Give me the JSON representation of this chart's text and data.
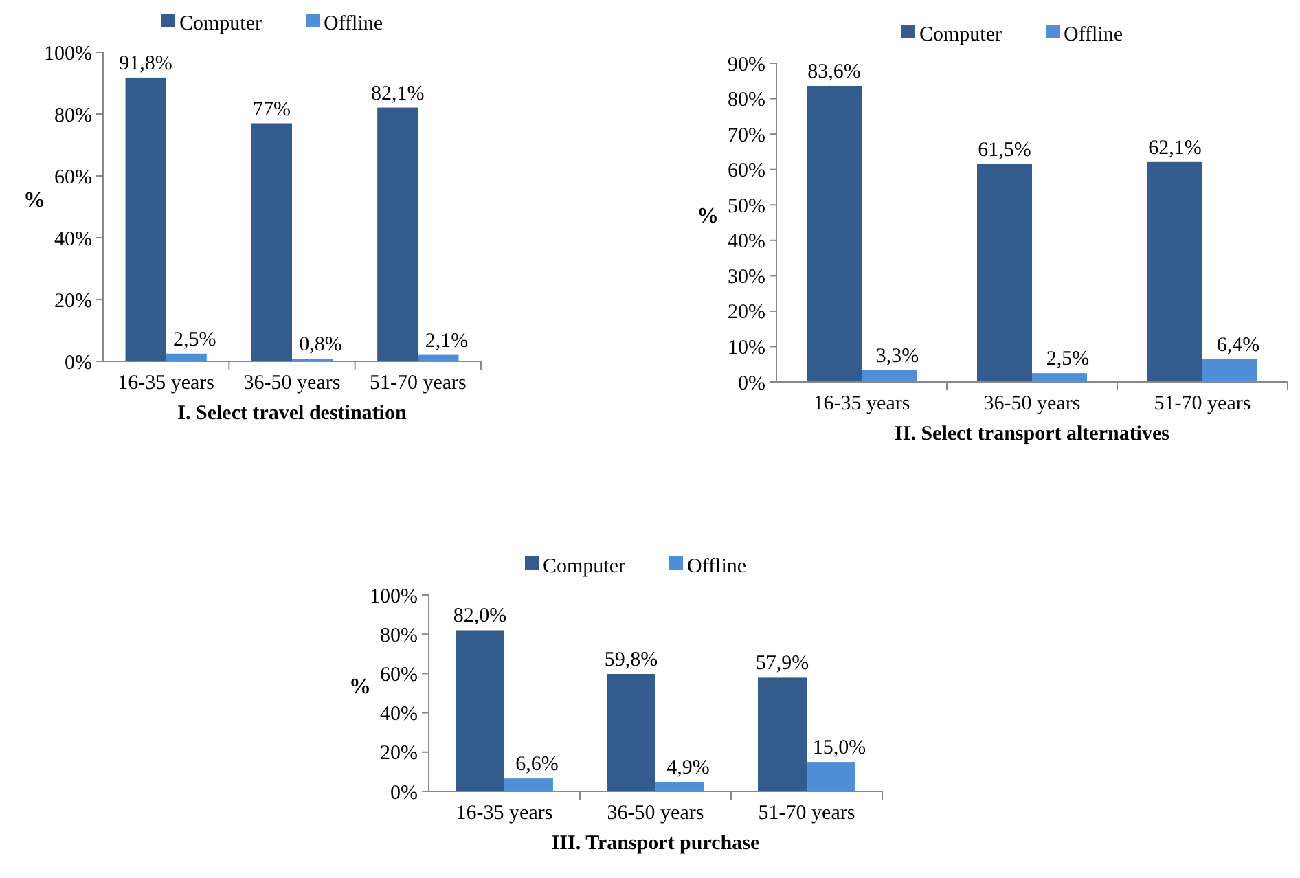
{
  "chart_data": [
    {
      "type": "bar",
      "title": "I. Select travel destination",
      "ylabel": "%",
      "categories": [
        "16-35 years",
        "36-50 years",
        "51-70 years"
      ],
      "ylim": [
        0,
        100
      ],
      "yticks": [
        {
          "value": 0,
          "label": "0%"
        },
        {
          "value": 20,
          "label": "20%"
        },
        {
          "value": 40,
          "label": "40%"
        },
        {
          "value": 60,
          "label": "60%"
        },
        {
          "value": 80,
          "label": "80%"
        },
        {
          "value": 100,
          "label": "100%"
        }
      ],
      "legend": "top",
      "series": [
        {
          "name": "Computer",
          "color": "#335b8e",
          "values": [
            91.8,
            77,
            82.1
          ],
          "value_labels": [
            "91,8%",
            "77%",
            "82,1%"
          ]
        },
        {
          "name": "Offline",
          "color": "#4f8fd8",
          "values": [
            2.5,
            0.8,
            2.1
          ],
          "value_labels": [
            "2,5%",
            "0,8%",
            "2,1%"
          ]
        }
      ]
    },
    {
      "type": "bar",
      "title": "II. Select transport alternatives",
      "ylabel": "%",
      "categories": [
        "16-35 years",
        "36-50 years",
        "51-70 years"
      ],
      "ylim": [
        0,
        90
      ],
      "yticks": [
        {
          "value": 0,
          "label": "0%"
        },
        {
          "value": 10,
          "label": "10%"
        },
        {
          "value": 20,
          "label": "20%"
        },
        {
          "value": 30,
          "label": "30%"
        },
        {
          "value": 40,
          "label": "40%"
        },
        {
          "value": 50,
          "label": "50%"
        },
        {
          "value": 60,
          "label": "60%"
        },
        {
          "value": 70,
          "label": "70%"
        },
        {
          "value": 80,
          "label": "80%"
        },
        {
          "value": 90,
          "label": "90%"
        }
      ],
      "legend": "top",
      "series": [
        {
          "name": "Computer",
          "color": "#335b8e",
          "values": [
            83.6,
            61.5,
            62.1
          ],
          "value_labels": [
            "83,6%",
            "61,5%",
            "62,1%"
          ]
        },
        {
          "name": "Offline",
          "color": "#4f8fd8",
          "values": [
            3.3,
            2.5,
            6.4
          ],
          "value_labels": [
            "3,3%",
            "2,5%",
            "6,4%"
          ]
        }
      ]
    },
    {
      "type": "bar",
      "title": "III. Transport purchase",
      "ylabel": "%",
      "categories": [
        "16-35 years",
        "36-50 years",
        "51-70 years"
      ],
      "ylim": [
        0,
        100
      ],
      "yticks": [
        {
          "value": 0,
          "label": "0%"
        },
        {
          "value": 20,
          "label": "20%"
        },
        {
          "value": 40,
          "label": "40%"
        },
        {
          "value": 60,
          "label": "60%"
        },
        {
          "value": 80,
          "label": "80%"
        },
        {
          "value": 100,
          "label": "100%"
        }
      ],
      "legend": "top",
      "series": [
        {
          "name": "Computer",
          "color": "#335b8e",
          "values": [
            82.0,
            59.8,
            57.9
          ],
          "value_labels": [
            "82,0%",
            "59,8%",
            "57,9%"
          ]
        },
        {
          "name": "Offline",
          "color": "#4f8fd8",
          "values": [
            6.6,
            4.9,
            15.0
          ],
          "value_labels": [
            "6,6%",
            "4,9%",
            "15,0%"
          ]
        }
      ]
    }
  ]
}
